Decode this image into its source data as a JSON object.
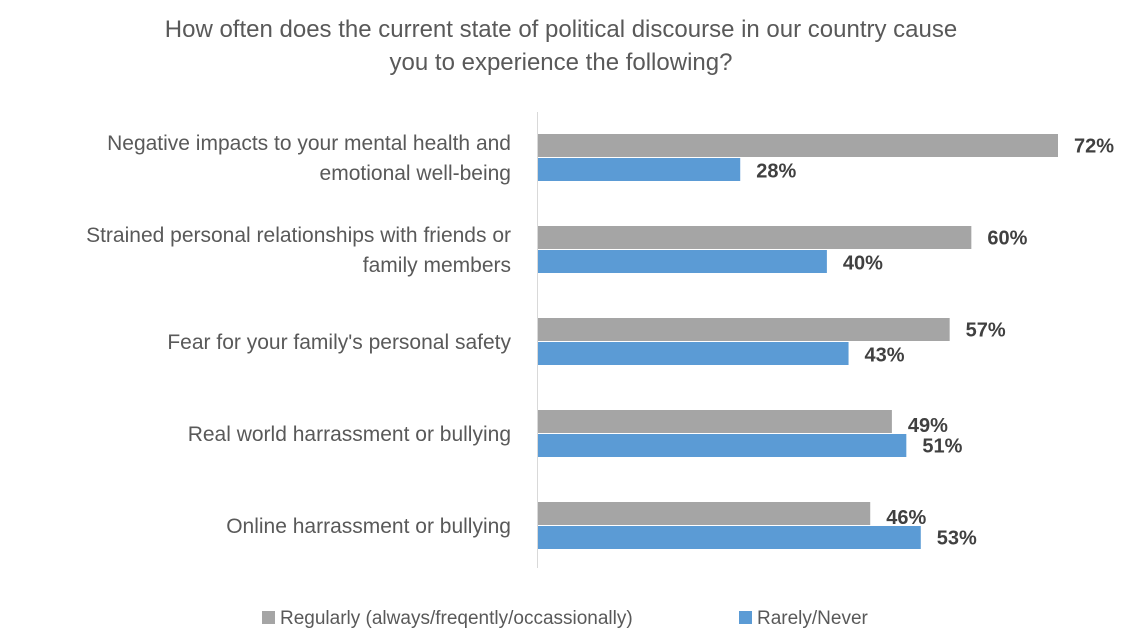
{
  "chart_data": {
    "type": "bar",
    "orientation": "horizontal",
    "title": "How often does the current state of political discourse in our country cause you to experience the following?",
    "title_lines": [
      "How often does the current state of political discourse in our country cause",
      "you to experience the following?"
    ],
    "categories": [
      "Negative impacts to your mental health and emotional well-being",
      "Strained personal relationships with friends or family members",
      "Fear for your family's personal safety",
      "Real world harrassment or bullying",
      "Online harrassment or bullying"
    ],
    "category_lines": [
      [
        "Negative impacts to your mental health and",
        "emotional well-being"
      ],
      [
        "Strained personal relationships with friends or",
        "family members"
      ],
      [
        "Fear for your family's personal safety"
      ],
      [
        "Real world harrassment or bullying"
      ],
      [
        "Online harrassment or bullying"
      ]
    ],
    "series": [
      {
        "name": "Regularly (always/freqently/occassionally)",
        "color": "#a5a5a5",
        "values": [
          72,
          60,
          57,
          49,
          46
        ],
        "labels": [
          "72%",
          "60%",
          "57%",
          "49%",
          "46%"
        ]
      },
      {
        "name": "Rarely/Never",
        "color": "#5b9bd5",
        "values": [
          28,
          40,
          43,
          51,
          53
        ],
        "labels": [
          "28%",
          "40%",
          "43%",
          "51%",
          "53%"
        ]
      }
    ],
    "xlim": [
      0,
      72
    ],
    "grid": false,
    "legend": "bottom"
  }
}
